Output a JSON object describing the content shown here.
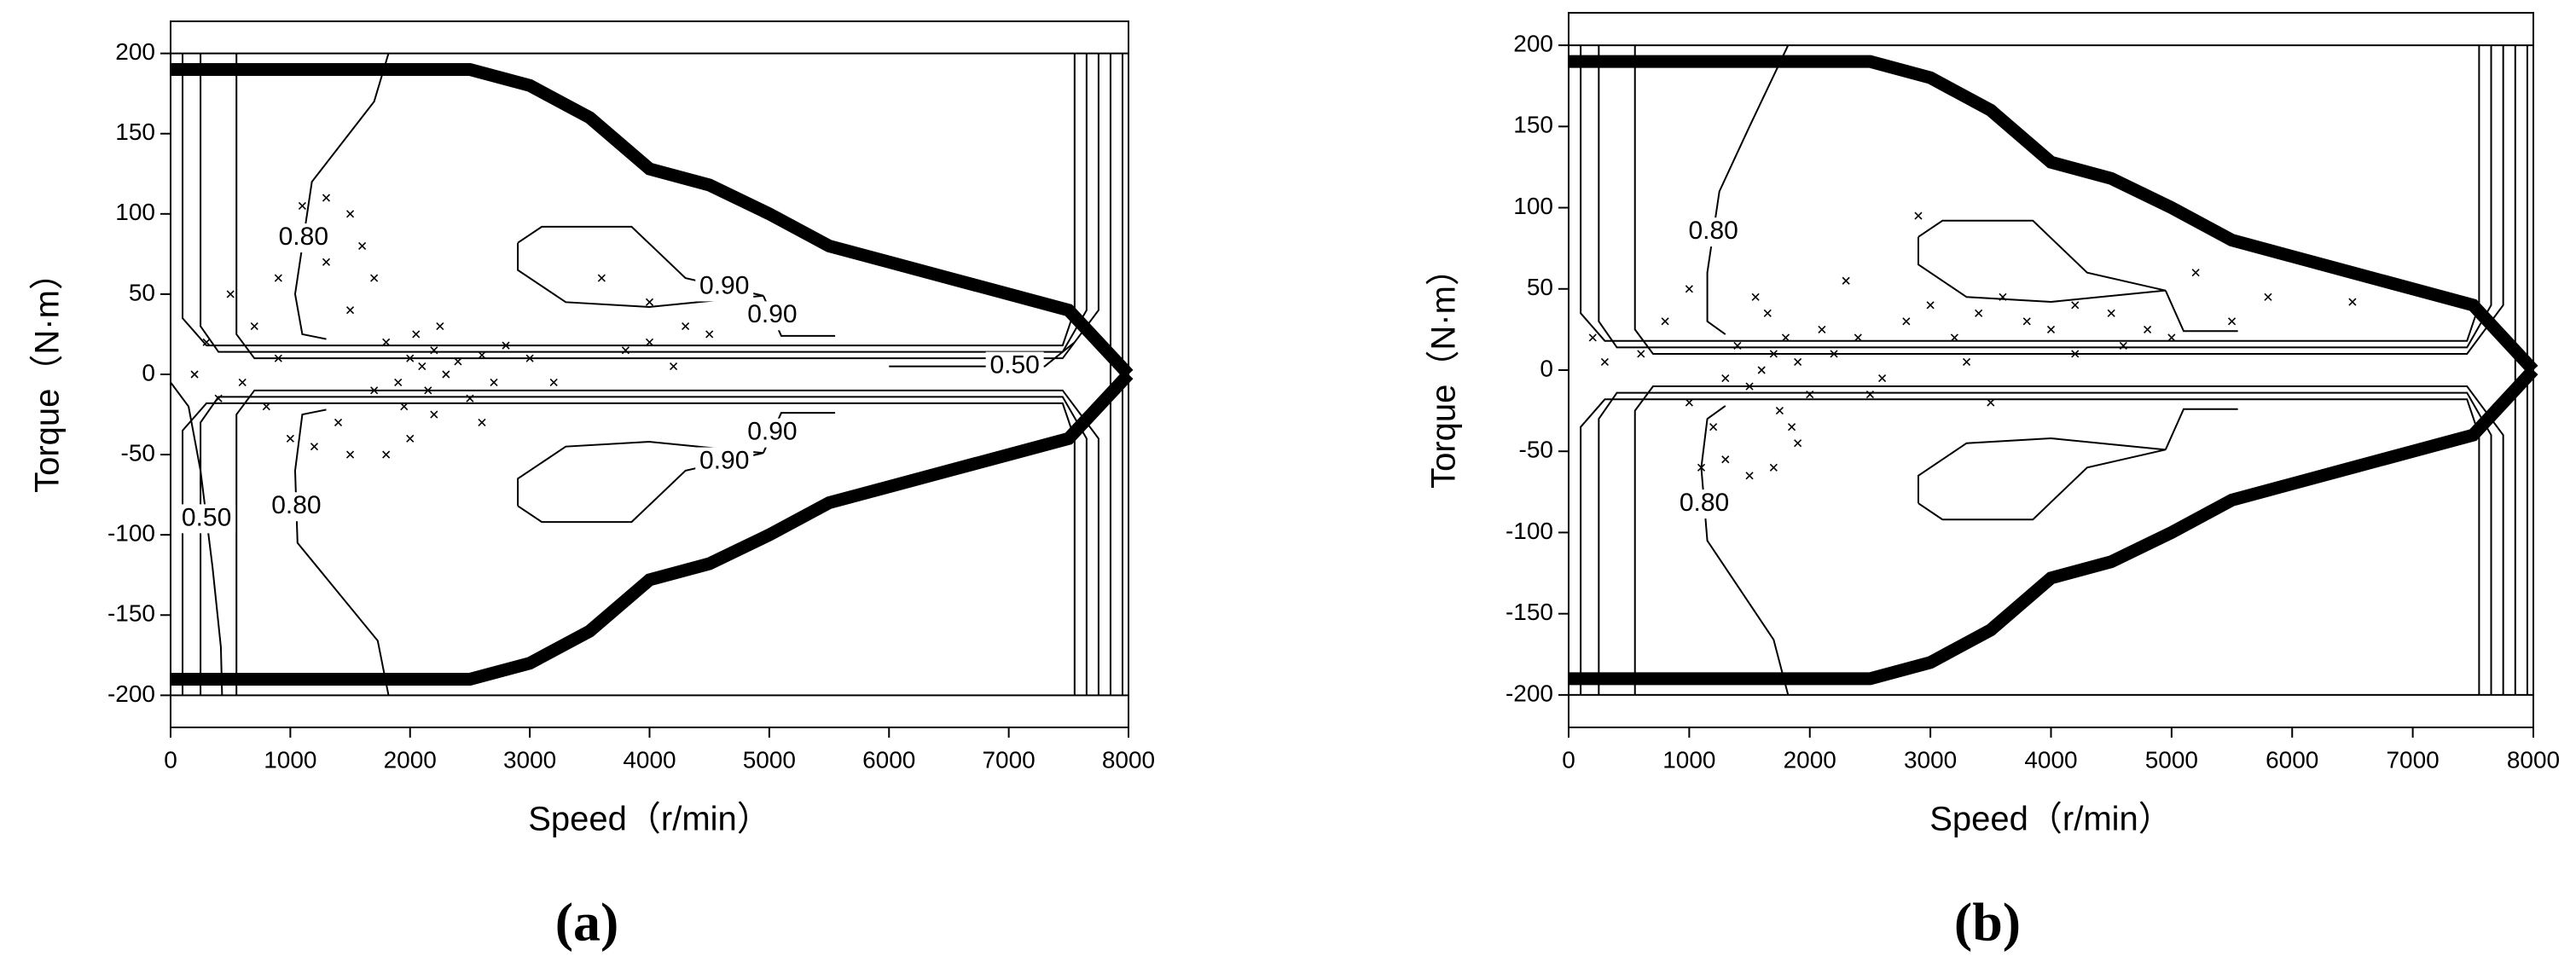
{
  "chart_data": [
    {
      "type": "contour",
      "panel_label": "(a)",
      "xlabel": "Speed（r/min）",
      "ylabel": "Torque（N·m）",
      "xlim": [
        0,
        8000
      ],
      "xticks": [
        0,
        1000,
        2000,
        3000,
        4000,
        5000,
        6000,
        7000,
        8000
      ],
      "ylim": [
        -220,
        220
      ],
      "yticks": [
        -200,
        -150,
        -100,
        -50,
        0,
        50,
        100,
        150,
        200
      ],
      "boundary": [
        {
          "x": [
            0,
            2500,
            3000,
            3500,
            4000,
            4500,
            5000,
            5500,
            6000,
            6500,
            7000,
            7500,
            8000
          ],
          "y": [
            190,
            190,
            180,
            160,
            128,
            118,
            100,
            80,
            70,
            60,
            50,
            40,
            0
          ]
        },
        {
          "x": [
            0,
            2500,
            3000,
            3500,
            4000,
            4500,
            5000,
            5500,
            6000,
            6500,
            7000,
            7500,
            8000
          ],
          "y": [
            -190,
            -190,
            -180,
            -160,
            -128,
            -118,
            -100,
            -80,
            -70,
            -60,
            -50,
            -40,
            0
          ]
        }
      ],
      "contours": [
        {
          "x": [
            2900,
            3100,
            3850,
            4300,
            4950,
            4000,
            3300,
            2900,
            2900
          ],
          "y": [
            82,
            92,
            92,
            60,
            49,
            42,
            45,
            65,
            82
          ],
          "label": "0.90"
        },
        {
          "x": [
            4950,
            5100,
            5550
          ],
          "y": [
            49,
            24,
            24
          ],
          "label": "0.90"
        },
        {
          "x": [
            2900,
            3100,
            3850,
            4300,
            4950,
            4000,
            3300,
            2900,
            2900
          ],
          "y": [
            -82,
            -92,
            -92,
            -60,
            -49,
            -42,
            -45,
            -65,
            -82
          ],
          "label": "0.90"
        },
        {
          "x": [
            4950,
            5100,
            5550
          ],
          "y": [
            -49,
            -24,
            -24
          ],
          "label": "0.90"
        },
        {
          "x": [
            1820,
            1700,
            1180,
            1040,
            1100,
            1300
          ],
          "y": [
            200,
            170,
            120,
            50,
            25,
            22
          ],
          "label": "0.80"
        },
        {
          "x": [
            1300,
            1100,
            1040,
            1060,
            1730,
            1820
          ],
          "y": [
            -22,
            -25,
            -60,
            -105,
            -166,
            -200
          ],
          "label": "0.80"
        },
        {
          "x": [
            0,
            150,
            250,
            350,
            420,
            430
          ],
          "y": [
            -5,
            -20,
            -60,
            -120,
            -170,
            -200
          ],
          "label": "0.50"
        },
        {
          "x": [
            6000,
            6800,
            7300,
            7550
          ],
          "y": [
            5,
            5,
            5,
            20
          ],
          "label": "0.50"
        },
        {
          "x": [
            100,
            100,
            300,
            7450,
            7550,
            7550
          ],
          "y": [
            200,
            35,
            18,
            18,
            40,
            200
          ]
        },
        {
          "x": [
            250,
            250,
            400,
            7450,
            7650,
            7650
          ],
          "y": [
            200,
            30,
            14,
            14,
            40,
            200
          ]
        },
        {
          "x": [
            550,
            550,
            700,
            7450,
            7750,
            7750
          ],
          "y": [
            200,
            25,
            10,
            10,
            40,
            200
          ]
        },
        {
          "x": [
            100,
            100,
            300,
            7450,
            7550,
            7550
          ],
          "y": [
            -200,
            -35,
            -18,
            -18,
            -40,
            -200
          ]
        },
        {
          "x": [
            250,
            250,
            400,
            7450,
            7650,
            7650
          ],
          "y": [
            -200,
            -30,
            -14,
            -14,
            -40,
            -200
          ]
        },
        {
          "x": [
            550,
            550,
            700,
            7450,
            7750,
            7750
          ],
          "y": [
            -200,
            -25,
            -10,
            -10,
            -40,
            -200
          ]
        },
        {
          "x": [
            7850,
            7850
          ],
          "y": [
            200,
            -200
          ]
        },
        {
          "x": [
            7950,
            7950
          ],
          "y": [
            200,
            -200
          ]
        }
      ],
      "points": {
        "x": [
          2000,
          2100,
          2200,
          1900,
          2300,
          2050,
          2150,
          2400,
          1800,
          2500,
          2250,
          1950,
          2600,
          2700,
          2800,
          1500,
          1300,
          1200,
          1100,
          900,
          700,
          500,
          300,
          1400,
          1200,
          1500,
          1800,
          1000,
          800,
          1600,
          1700,
          3000,
          3200,
          3800,
          4000,
          4300,
          4500,
          4200,
          3600,
          4000,
          2000,
          2600,
          1700,
          2200,
          1300,
          1500,
          600,
          400,
          200,
          900
        ],
        "y": [
          10,
          5,
          15,
          -5,
          0,
          25,
          -10,
          8,
          20,
          -15,
          30,
          -20,
          12,
          -5,
          18,
          40,
          70,
          90,
          105,
          60,
          30,
          50,
          20,
          -30,
          -45,
          -50,
          -50,
          -40,
          -20,
          80,
          60,
          10,
          -5,
          15,
          20,
          30,
          25,
          5,
          60,
          45,
          -40,
          -30,
          -10,
          -25,
          110,
          100,
          -5,
          -15,
          0,
          10
        ]
      }
    },
    {
      "type": "contour",
      "panel_label": "(b)",
      "xlabel": "Speed（r/min）",
      "ylabel": "Torque（N·m）",
      "xlim": [
        0,
        8000
      ],
      "xticks": [
        0,
        1000,
        2000,
        3000,
        4000,
        5000,
        6000,
        7000,
        8000
      ],
      "ylim": [
        -220,
        220
      ],
      "yticks": [
        -200,
        -150,
        -100,
        -50,
        0,
        50,
        100,
        150,
        200
      ],
      "boundary": [
        {
          "x": [
            0,
            2500,
            3000,
            3500,
            4000,
            4500,
            5000,
            5500,
            6000,
            6500,
            7000,
            7500,
            8000
          ],
          "y": [
            190,
            190,
            180,
            160,
            128,
            118,
            100,
            80,
            70,
            60,
            50,
            40,
            0
          ]
        },
        {
          "x": [
            0,
            2500,
            3000,
            3500,
            4000,
            4500,
            5000,
            5500,
            6000,
            6500,
            7000,
            7500,
            8000
          ],
          "y": [
            -190,
            -190,
            -180,
            -160,
            -128,
            -118,
            -100,
            -80,
            -70,
            -60,
            -50,
            -40,
            0
          ]
        }
      ],
      "contours": [
        {
          "x": [
            2900,
            3100,
            3850,
            4300,
            4950,
            4000,
            3300,
            2900,
            2900
          ],
          "y": [
            82,
            92,
            92,
            60,
            49,
            42,
            45,
            65,
            82
          ]
        },
        {
          "x": [
            4950,
            5100,
            5550
          ],
          "y": [
            49,
            24,
            24
          ]
        },
        {
          "x": [
            2900,
            3100,
            3850,
            4300,
            4950,
            4000,
            3300,
            2900,
            2900
          ],
          "y": [
            -82,
            -92,
            -92,
            -60,
            -49,
            -42,
            -45,
            -65,
            -82
          ]
        },
        {
          "x": [
            4950,
            5100,
            5550
          ],
          "y": [
            -49,
            -24,
            -24
          ]
        },
        {
          "x": [
            1820,
            1500,
            1250,
            1150,
            1150,
            1300
          ],
          "y": [
            200,
            150,
            110,
            60,
            30,
            22
          ],
          "label": "0.80"
        },
        {
          "x": [
            1300,
            1150,
            1100,
            1150,
            1700,
            1820
          ],
          "y": [
            -22,
            -30,
            -60,
            -105,
            -166,
            -200
          ],
          "label": "0.80"
        },
        {
          "x": [
            100,
            100,
            300,
            7450,
            7550,
            7550
          ],
          "y": [
            200,
            35,
            18,
            18,
            40,
            200
          ]
        },
        {
          "x": [
            250,
            250,
            400,
            7450,
            7650,
            7650
          ],
          "y": [
            200,
            30,
            14,
            14,
            40,
            200
          ]
        },
        {
          "x": [
            550,
            550,
            700,
            7450,
            7750,
            7750
          ],
          "y": [
            200,
            25,
            10,
            10,
            40,
            200
          ]
        },
        {
          "x": [
            100,
            100,
            300,
            7450,
            7550,
            7550
          ],
          "y": [
            -200,
            -35,
            -18,
            -18,
            -40,
            -200
          ]
        },
        {
          "x": [
            250,
            250,
            400,
            7450,
            7650,
            7650
          ],
          "y": [
            -200,
            -30,
            -14,
            -14,
            -40,
            -200
          ]
        },
        {
          "x": [
            550,
            550,
            700,
            7450,
            7750,
            7750
          ],
          "y": [
            -200,
            -25,
            -10,
            -10,
            -40,
            -200
          ]
        },
        {
          "x": [
            7850,
            7850
          ],
          "y": [
            200,
            -200
          ]
        },
        {
          "x": [
            7950,
            7950
          ],
          "y": [
            200,
            -200
          ]
        }
      ],
      "points": {
        "x": [
          1700,
          1600,
          1800,
          1500,
          1900,
          1650,
          1750,
          1400,
          2000,
          1550,
          1850,
          2100,
          1300,
          2200,
          2400,
          2600,
          2800,
          3000,
          3200,
          3400,
          3600,
          3800,
          4000,
          4200,
          4500,
          4800,
          5000,
          5500,
          5800,
          6500,
          2900,
          1000,
          800,
          600,
          300,
          1100,
          1300,
          1500,
          1700,
          1200,
          1900,
          1000,
          2500,
          3300,
          2300,
          4200,
          4600,
          5200,
          3500,
          200
        ],
        "y": [
          10,
          0,
          20,
          -10,
          5,
          35,
          -25,
          15,
          -15,
          45,
          -35,
          25,
          -5,
          10,
          20,
          -5,
          30,
          40,
          20,
          35,
          45,
          30,
          25,
          40,
          35,
          25,
          20,
          30,
          45,
          42,
          95,
          50,
          30,
          10,
          5,
          -60,
          -55,
          -65,
          -60,
          -35,
          -45,
          -20,
          -15,
          5,
          55,
          10,
          15,
          60,
          -20,
          20
        ]
      }
    }
  ]
}
